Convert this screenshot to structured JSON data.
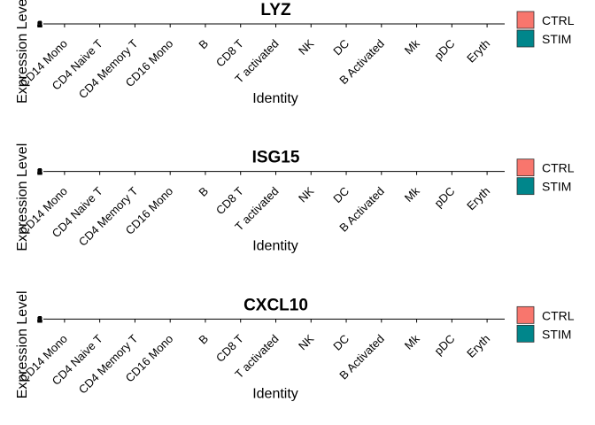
{
  "chart_data": [
    {
      "type": "violin",
      "title": "LYZ",
      "xlabel": "Identity",
      "ylabel": "Expression Level",
      "categories": [
        "CD14 Mono",
        "CD4 Naive T",
        "CD4 Memory T",
        "CD16 Mono",
        "B",
        "CD8 T",
        "T activated",
        "NK",
        "DC",
        "B Activated",
        "Mk",
        "pDC",
        "Eryth"
      ],
      "yticks": [
        "0",
        "1",
        "2",
        "3",
        "4"
      ],
      "series": [
        {
          "name": "CTRL",
          "color": "#F8766D"
        },
        {
          "name": "STIM",
          "color": "#00868B"
        }
      ]
    },
    {
      "type": "violin",
      "title": "ISG15",
      "xlabel": "Identity",
      "ylabel": "Expression Level",
      "categories": [
        "CD14 Mono",
        "CD4 Naive T",
        "CD4 Memory T",
        "CD16 Mono",
        "B",
        "CD8 T",
        "T activated",
        "NK",
        "DC",
        "B Activated",
        "Mk",
        "pDC",
        "Eryth"
      ],
      "yticks": [
        "0",
        "1",
        "2",
        "3",
        "4"
      ],
      "series": [
        {
          "name": "CTRL",
          "color": "#F8766D"
        },
        {
          "name": "STIM",
          "color": "#00868B"
        }
      ]
    },
    {
      "type": "violin",
      "title": "CXCL10",
      "xlabel": "Identity",
      "ylabel": "Expression Level",
      "categories": [
        "CD14 Mono",
        "CD4 Naive T",
        "CD4 Memory T",
        "CD16 Mono",
        "B",
        "CD8 T",
        "T activated",
        "NK",
        "DC",
        "B Activated",
        "Mk",
        "pDC",
        "Eryth"
      ],
      "yticks": [
        "0",
        "1",
        "2",
        "3",
        "4"
      ],
      "series": [
        {
          "name": "CTRL",
          "color": "#F8766D"
        },
        {
          "name": "STIM",
          "color": "#00868B"
        }
      ]
    }
  ]
}
